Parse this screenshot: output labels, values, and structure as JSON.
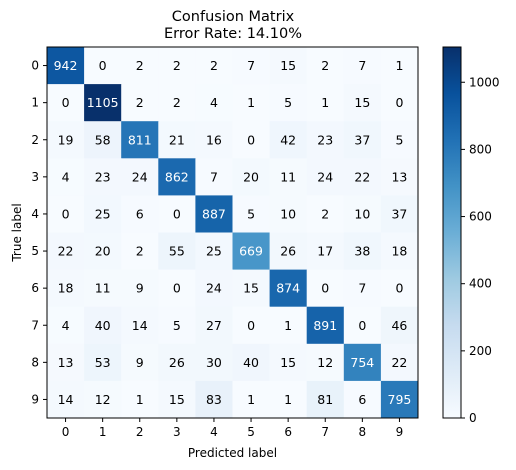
{
  "chart_data": {
    "type": "heatmap",
    "title": "Confusion Matrix",
    "subtitle": "Error Rate: 14.10%",
    "xlabel": "Predicted label",
    "ylabel": "True label",
    "x_categories": [
      "0",
      "1",
      "2",
      "3",
      "4",
      "5",
      "6",
      "7",
      "8",
      "9"
    ],
    "y_categories": [
      "0",
      "1",
      "2",
      "3",
      "4",
      "5",
      "6",
      "7",
      "8",
      "9"
    ],
    "values": [
      [
        942,
        0,
        2,
        2,
        2,
        7,
        15,
        2,
        7,
        1
      ],
      [
        0,
        1105,
        2,
        2,
        4,
        1,
        5,
        1,
        15,
        0
      ],
      [
        19,
        58,
        811,
        21,
        16,
        0,
        42,
        23,
        37,
        5
      ],
      [
        4,
        23,
        24,
        862,
        7,
        20,
        11,
        24,
        22,
        13
      ],
      [
        0,
        25,
        6,
        0,
        887,
        5,
        10,
        2,
        10,
        37
      ],
      [
        22,
        20,
        2,
        55,
        25,
        669,
        26,
        17,
        38,
        18
      ],
      [
        18,
        11,
        9,
        0,
        24,
        15,
        874,
        0,
        7,
        0
      ],
      [
        4,
        40,
        14,
        5,
        27,
        0,
        1,
        891,
        0,
        46
      ],
      [
        13,
        53,
        9,
        26,
        30,
        40,
        15,
        12,
        754,
        22
      ],
      [
        14,
        12,
        1,
        15,
        83,
        1,
        1,
        81,
        6,
        795
      ]
    ],
    "colormap": "Blues",
    "vmin": 0,
    "vmax": 1105,
    "colorbar_ticks": [
      0,
      200,
      400,
      600,
      800,
      1000
    ],
    "grid": false
  }
}
